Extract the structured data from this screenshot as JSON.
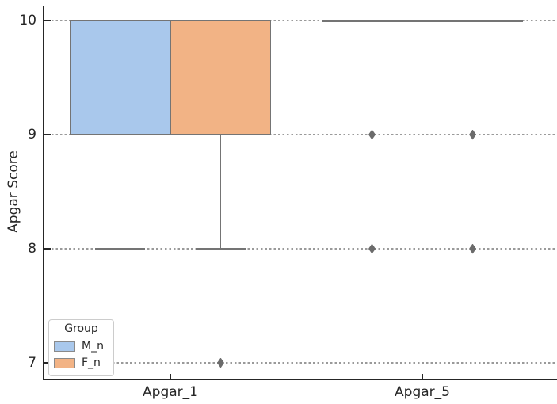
{
  "chart_data": {
    "type": "box",
    "ylabel": "Apgar Score",
    "categories": [
      "Apgar_1",
      "Apgar_5"
    ],
    "yticks": [
      10,
      9,
      8,
      7
    ],
    "ylim": [
      6.85,
      10.15
    ],
    "grid": "dashed horizontal lines at each y tick",
    "legend": {
      "title": "Group",
      "position": "lower left",
      "entries": [
        {
          "label": "M_n",
          "color": "#a9c8ec"
        },
        {
          "label": "F_n",
          "color": "#f2b385"
        }
      ]
    },
    "style": {
      "box_edge_color": "#747474",
      "grid_color": "#9a9a9a",
      "spine_color": "#262626",
      "flier_color": "#6b6b6b",
      "text_color": "#262626",
      "legend_border_color": "#cccccc"
    },
    "series": [
      {
        "name": "M_n",
        "color": "#a9c8ec",
        "boxes": [
          {
            "category": "Apgar_1",
            "q1": 9,
            "median": 10,
            "q3": 10,
            "whisker_low": 8,
            "whisker_high": 10,
            "outliers": []
          },
          {
            "category": "Apgar_5",
            "q1": 10,
            "median": 10,
            "q3": 10,
            "whisker_low": 10,
            "whisker_high": 10,
            "outliers": [
              9,
              8
            ]
          }
        ]
      },
      {
        "name": "F_n",
        "color": "#f2b385",
        "boxes": [
          {
            "category": "Apgar_1",
            "q1": 9,
            "median": 10,
            "q3": 10,
            "whisker_low": 8,
            "whisker_high": 10,
            "outliers": [
              7
            ]
          },
          {
            "category": "Apgar_5",
            "q1": 10,
            "median": 10,
            "q3": 10,
            "whisker_low": 10,
            "whisker_high": 10,
            "outliers": [
              9,
              8
            ]
          }
        ]
      }
    ]
  }
}
